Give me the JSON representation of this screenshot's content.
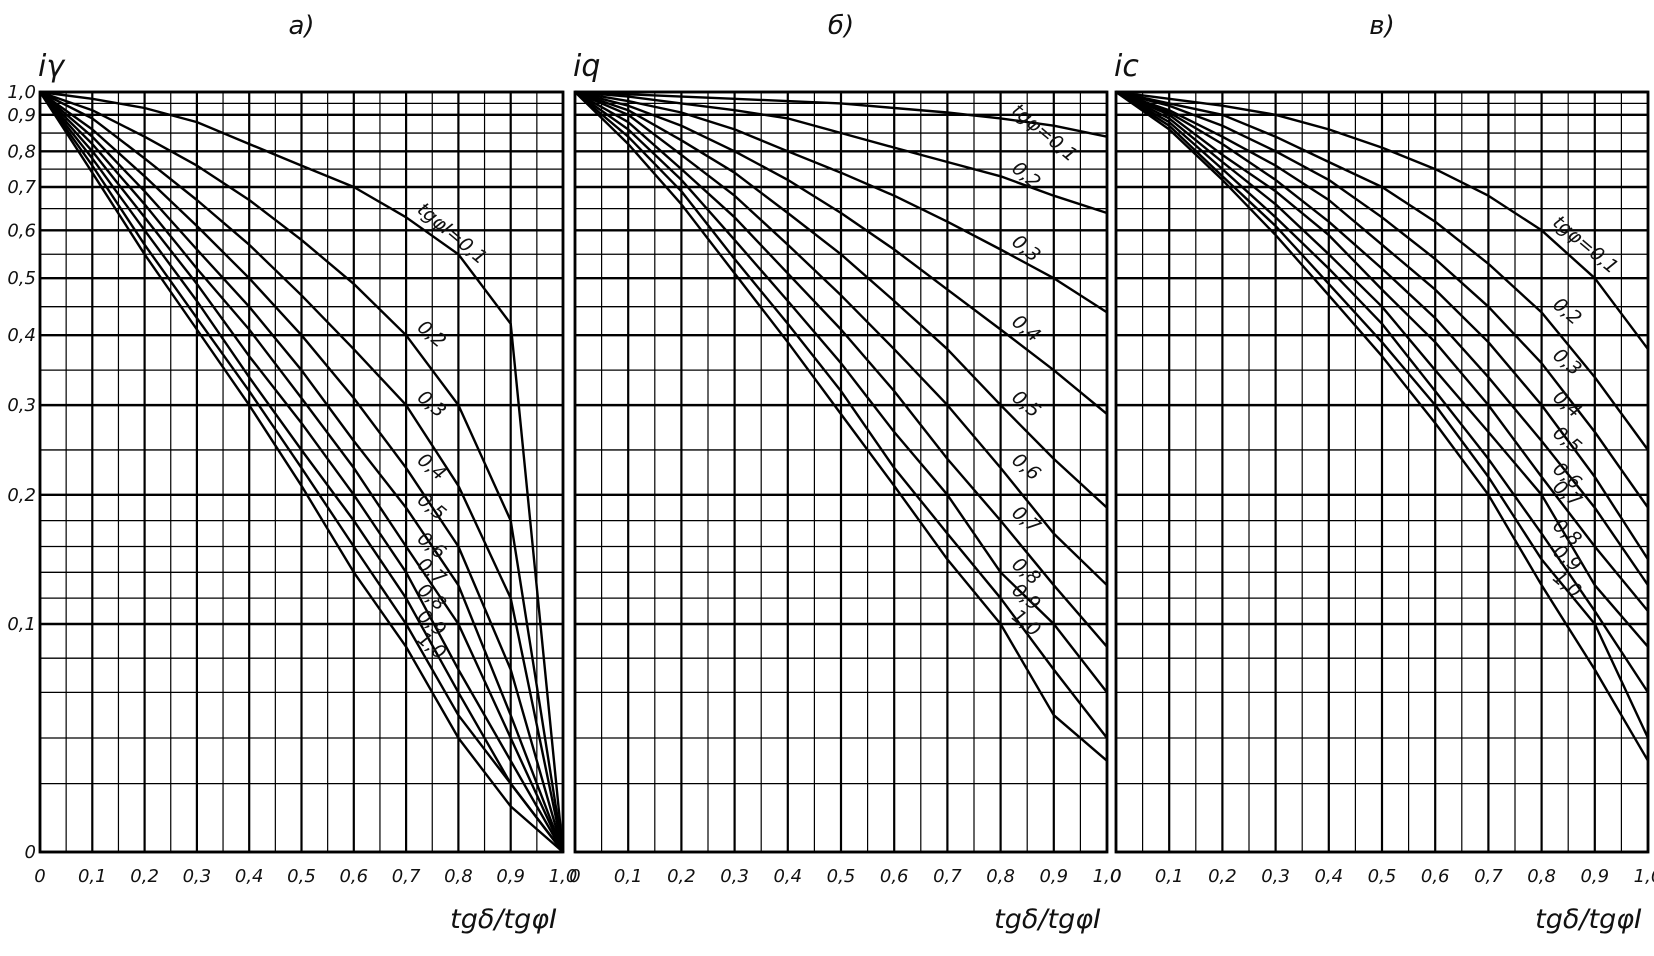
{
  "chart_data": [
    {
      "type": "line",
      "panel_label": "a)",
      "ylabel": "iγ",
      "xlabel": "tgδ/tgφI",
      "xlim": [
        0,
        1.0
      ],
      "ylim": [
        0,
        1.0
      ],
      "y_scale": "nonlinear",
      "grid": true,
      "x_ticks": [
        "0",
        "0,1",
        "0,2",
        "0,3",
        "0,4",
        "0,5",
        "0,6",
        "0,7",
        "0,8",
        "0,9",
        "1,0"
      ],
      "y_ticks": [
        "1,0",
        "0,9",
        "0,8",
        "0,7",
        "0,6",
        "0,5",
        "0,4",
        "0,3",
        "0,2",
        "0,1",
        "0"
      ],
      "x": [
        0,
        0.1,
        0.2,
        0.3,
        0.4,
        0.5,
        0.6,
        0.7,
        0.8,
        0.9,
        1.0
      ],
      "series": [
        {
          "name": "tgφI=0,1",
          "values": [
            1.0,
            0.97,
            0.93,
            0.88,
            0.82,
            0.76,
            0.7,
            0.63,
            0.55,
            0.42,
            0.0
          ]
        },
        {
          "name": "0,2",
          "values": [
            1.0,
            0.92,
            0.84,
            0.76,
            0.67,
            0.58,
            0.49,
            0.4,
            0.3,
            0.18,
            0.0
          ]
        },
        {
          "name": "0,3",
          "values": [
            1.0,
            0.89,
            0.78,
            0.67,
            0.57,
            0.47,
            0.38,
            0.3,
            0.21,
            0.12,
            0.0
          ]
        },
        {
          "name": "0,4",
          "values": [
            1.0,
            0.86,
            0.73,
            0.61,
            0.5,
            0.4,
            0.31,
            0.23,
            0.16,
            0.08,
            0.0
          ]
        },
        {
          "name": "0,5",
          "values": [
            1.0,
            0.84,
            0.69,
            0.56,
            0.45,
            0.35,
            0.26,
            0.19,
            0.13,
            0.06,
            0.0
          ]
        },
        {
          "name": "0,6",
          "values": [
            1.0,
            0.82,
            0.66,
            0.52,
            0.41,
            0.31,
            0.23,
            0.16,
            0.1,
            0.05,
            0.0
          ]
        },
        {
          "name": "0,7",
          "values": [
            1.0,
            0.8,
            0.63,
            0.49,
            0.37,
            0.28,
            0.2,
            0.14,
            0.08,
            0.04,
            0.0
          ]
        },
        {
          "name": "0,8",
          "values": [
            1.0,
            0.78,
            0.6,
            0.46,
            0.34,
            0.25,
            0.18,
            0.12,
            0.07,
            0.03,
            0.0
          ]
        },
        {
          "name": "0,9",
          "values": [
            1.0,
            0.76,
            0.57,
            0.43,
            0.32,
            0.23,
            0.16,
            0.1,
            0.06,
            0.03,
            0.0
          ]
        },
        {
          "name": "1,0",
          "values": [
            1.0,
            0.74,
            0.55,
            0.41,
            0.3,
            0.21,
            0.14,
            0.09,
            0.05,
            0.02,
            0.0
          ]
        }
      ],
      "label_text": {
        "first": "tgφI=0,1"
      }
    },
    {
      "type": "line",
      "panel_label": "б)",
      "ylabel": "iq",
      "xlabel": "tgδ/tgφI",
      "xlim": [
        0,
        1.0
      ],
      "ylim": [
        0,
        1.0
      ],
      "y_scale": "nonlinear",
      "grid": true,
      "x_ticks": [
        "0",
        "0,1",
        "0,2",
        "0,3",
        "0,4",
        "0,5",
        "0,6",
        "0,7",
        "0,8",
        "0,9",
        "1,0"
      ],
      "x": [
        0,
        0.1,
        0.2,
        0.3,
        0.4,
        0.5,
        0.6,
        0.7,
        0.8,
        0.9,
        1.0
      ],
      "series": [
        {
          "name": "tgφ=0,1",
          "values": [
            1.0,
            0.99,
            0.98,
            0.97,
            0.96,
            0.95,
            0.93,
            0.91,
            0.89,
            0.87,
            0.84
          ]
        },
        {
          "name": "0,2",
          "values": [
            1.0,
            0.98,
            0.95,
            0.92,
            0.89,
            0.85,
            0.81,
            0.77,
            0.73,
            0.68,
            0.64
          ]
        },
        {
          "name": "0,3",
          "values": [
            1.0,
            0.96,
            0.91,
            0.86,
            0.8,
            0.74,
            0.68,
            0.62,
            0.56,
            0.5,
            0.44
          ]
        },
        {
          "name": "0,4",
          "values": [
            1.0,
            0.94,
            0.87,
            0.8,
            0.72,
            0.64,
            0.56,
            0.48,
            0.41,
            0.35,
            0.29
          ]
        },
        {
          "name": "0,5",
          "values": [
            1.0,
            0.92,
            0.83,
            0.74,
            0.64,
            0.55,
            0.46,
            0.38,
            0.3,
            0.24,
            0.19
          ]
        },
        {
          "name": "0,6",
          "values": [
            1.0,
            0.9,
            0.79,
            0.68,
            0.57,
            0.47,
            0.38,
            0.3,
            0.23,
            0.17,
            0.13
          ]
        },
        {
          "name": "0,7",
          "values": [
            1.0,
            0.88,
            0.75,
            0.63,
            0.51,
            0.41,
            0.32,
            0.24,
            0.18,
            0.13,
            0.09
          ]
        },
        {
          "name": "0,8",
          "values": [
            1.0,
            0.86,
            0.72,
            0.58,
            0.46,
            0.36,
            0.27,
            0.2,
            0.14,
            0.1,
            0.07
          ]
        },
        {
          "name": "0,9",
          "values": [
            1.0,
            0.84,
            0.69,
            0.54,
            0.42,
            0.32,
            0.23,
            0.17,
            0.12,
            0.08,
            0.05
          ]
        },
        {
          "name": "1,0",
          "values": [
            1.0,
            0.82,
            0.66,
            0.51,
            0.39,
            0.29,
            0.21,
            0.15,
            0.1,
            0.06,
            0.04
          ]
        }
      ],
      "label_text": {
        "first": "tgφ=0,1"
      }
    },
    {
      "type": "line",
      "panel_label": "в)",
      "ylabel": "ic",
      "xlabel": "tgδ/tgφI",
      "xlim": [
        0,
        1.0
      ],
      "ylim": [
        0,
        1.0
      ],
      "y_scale": "nonlinear",
      "grid": true,
      "x_ticks": [
        "0",
        "0,1",
        "0,2",
        "0,3",
        "0,4",
        "0,5",
        "0,6",
        "0,7",
        "0,8",
        "0,9",
        "1,0"
      ],
      "x": [
        0,
        0.1,
        0.2,
        0.3,
        0.4,
        0.5,
        0.6,
        0.7,
        0.8,
        0.9,
        1.0
      ],
      "series": [
        {
          "name": "tgφ=0,1",
          "values": [
            1.0,
            0.97,
            0.94,
            0.9,
            0.86,
            0.81,
            0.75,
            0.68,
            0.6,
            0.5,
            0.38
          ]
        },
        {
          "name": "0,2",
          "values": [
            1.0,
            0.95,
            0.9,
            0.84,
            0.77,
            0.7,
            0.62,
            0.53,
            0.44,
            0.34,
            0.25
          ]
        },
        {
          "name": "0,3",
          "values": [
            1.0,
            0.94,
            0.87,
            0.8,
            0.72,
            0.63,
            0.54,
            0.45,
            0.36,
            0.27,
            0.19
          ]
        },
        {
          "name": "0,4",
          "values": [
            1.0,
            0.92,
            0.84,
            0.76,
            0.67,
            0.57,
            0.48,
            0.39,
            0.3,
            0.22,
            0.15
          ]
        },
        {
          "name": "0,5",
          "values": [
            1.0,
            0.91,
            0.82,
            0.72,
            0.62,
            0.52,
            0.43,
            0.34,
            0.26,
            0.19,
            0.13
          ]
        },
        {
          "name": "0,6",
          "values": [
            1.0,
            0.9,
            0.79,
            0.69,
            0.59,
            0.48,
            0.39,
            0.3,
            0.22,
            0.16,
            0.11
          ]
        },
        {
          "name": "0,7",
          "values": [
            1.0,
            0.89,
            0.77,
            0.66,
            0.55,
            0.45,
            0.35,
            0.27,
            0.2,
            0.13,
            0.09
          ]
        },
        {
          "name": "0,8",
          "values": [
            1.0,
            0.88,
            0.75,
            0.63,
            0.52,
            0.42,
            0.32,
            0.24,
            0.17,
            0.11,
            0.07
          ]
        },
        {
          "name": "0,9",
          "values": [
            1.0,
            0.87,
            0.73,
            0.61,
            0.49,
            0.39,
            0.3,
            0.22,
            0.15,
            0.1,
            0.05
          ]
        },
        {
          "name": "1,0",
          "values": [
            1.0,
            0.86,
            0.72,
            0.59,
            0.47,
            0.37,
            0.28,
            0.2,
            0.13,
            0.08,
            0.04
          ]
        }
      ],
      "label_text": {
        "first": "tgφ=0,1"
      }
    }
  ]
}
